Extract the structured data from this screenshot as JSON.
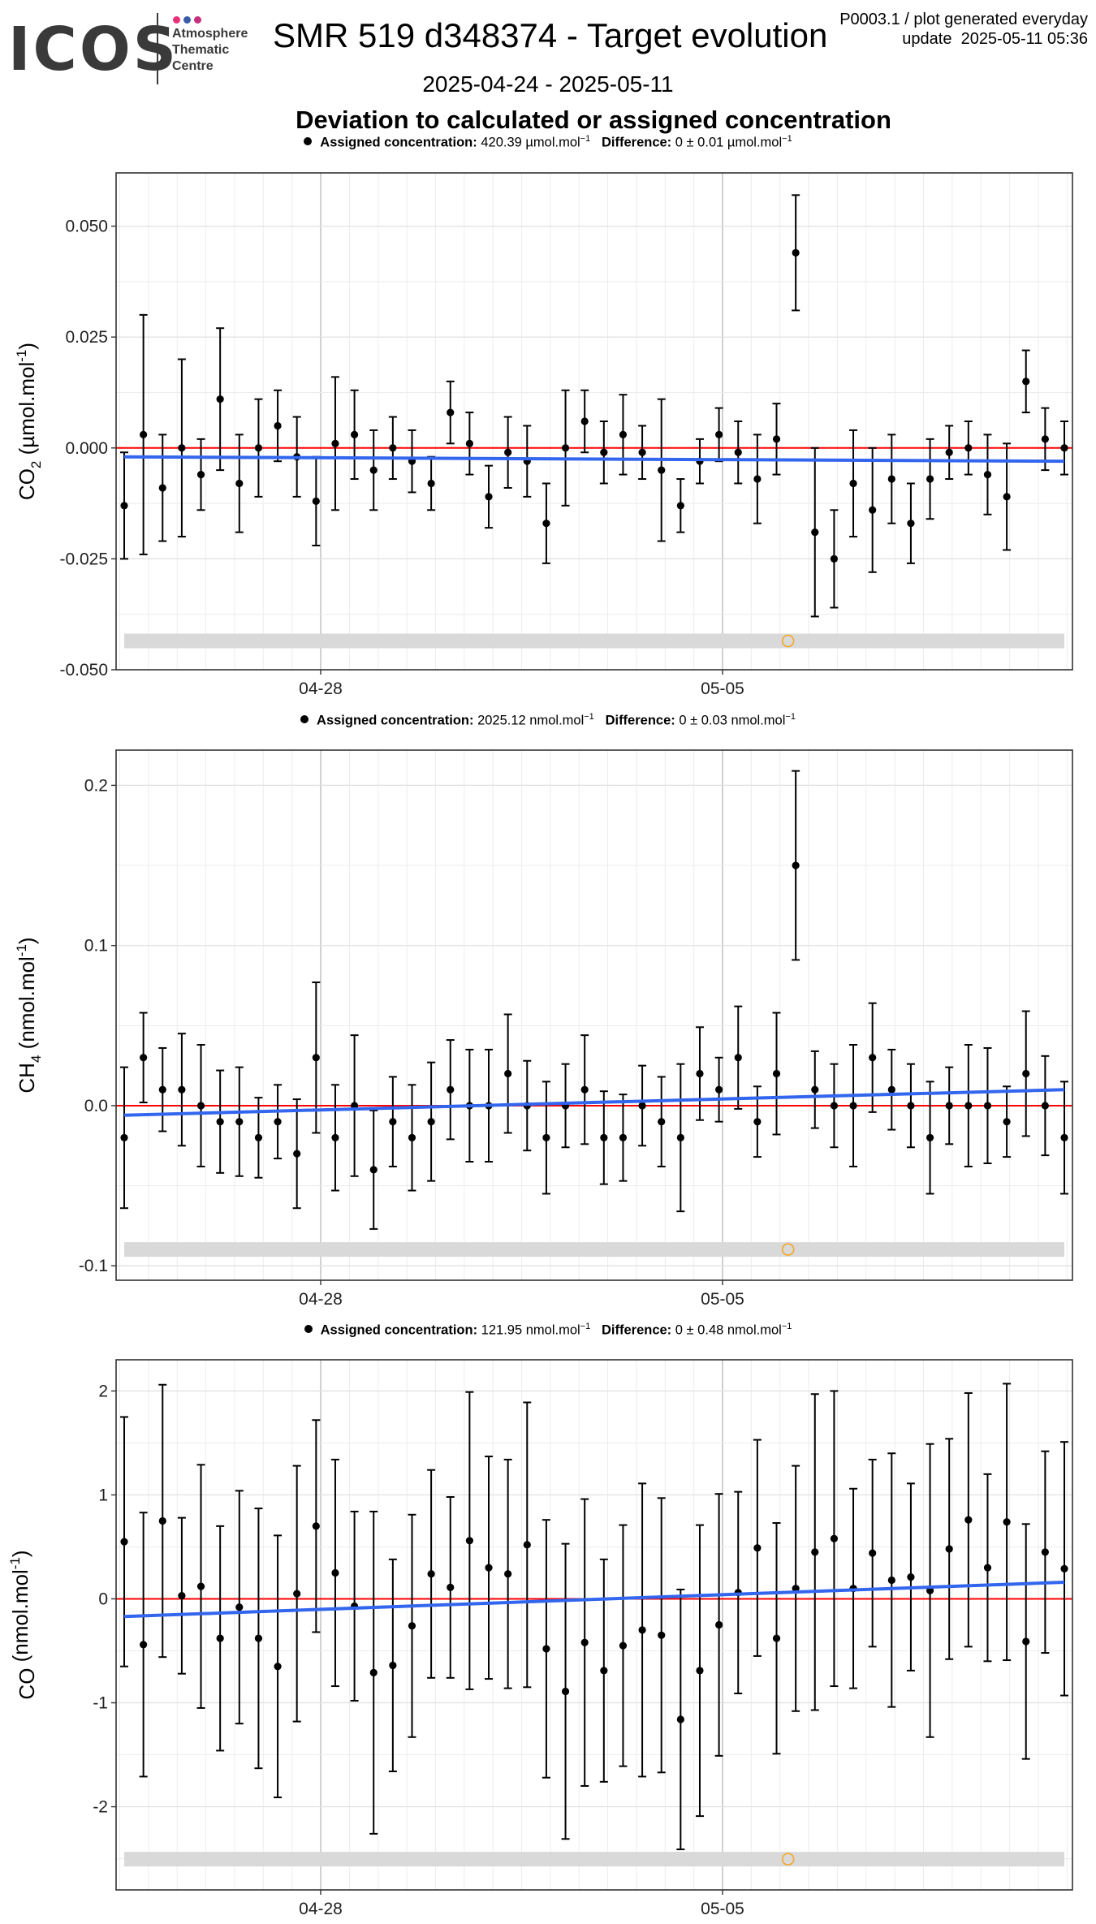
{
  "header": {
    "logo_word": "ICOS",
    "logo_line1": "Atmosphere",
    "logo_line2": "Thematic",
    "logo_line3": "Centre",
    "logo_dot_colors": [
      "#e8317a",
      "#3b5aa8",
      "#c62f7c"
    ],
    "title": "SMR 519 d348374 - Target evolution",
    "date_range": "2025-04-24 - 2025-05-11",
    "corner_line1": "P0003.1 / plot generated everyday",
    "corner_line2": "update  2025-05-11 05:36",
    "heading": "Deviation to calculated or assigned concentration"
  },
  "colors": {
    "points": "#000000",
    "zero_line": "#ff0000",
    "trend_line": "#3366ee",
    "highlight_circle": "#f5a623",
    "band": "#d9d9d9",
    "panel_border": "#333333",
    "grid_major": "#cccccc",
    "grid_minor": "#ececec"
  },
  "x_ticks": [
    "04-28",
    "05-05"
  ],
  "chart_data": [
    {
      "type": "scatter",
      "panel": "CO2",
      "ylabel_main": "CO",
      "ylabel_sub": "2",
      "ylabel_unit": " (µmol.mol",
      "ylabel_exp": "-1",
      "ylabel_end": ")",
      "legend_label": "Assigned concentration:",
      "legend_value": "420.39 µmol.mol",
      "legend_diff_label": "Difference:",
      "legend_diff_value": "0 ± 0.01 µmol.mol",
      "ylim": [
        -0.05,
        0.062
      ],
      "yticks": [
        0.05,
        0.025,
        0.0,
        -0.025,
        -0.05
      ],
      "ytick_labels": [
        "0.050",
        "0.025",
        "0.000",
        "-0.025",
        "-0.050"
      ],
      "y": [
        -0.013,
        0.003,
        -0.009,
        0.0,
        -0.006,
        0.011,
        -0.008,
        0.0,
        0.005,
        -0.002,
        -0.012,
        0.001,
        0.003,
        -0.005,
        0.0,
        -0.003,
        -0.008,
        0.008,
        0.001,
        -0.011,
        -0.001,
        -0.003,
        -0.017,
        0.0,
        0.006,
        -0.001,
        0.003,
        -0.001,
        -0.005,
        -0.013,
        -0.003,
        0.003,
        -0.001,
        -0.007,
        0.002,
        0.044,
        -0.019,
        -0.025,
        -0.008,
        -0.014,
        -0.007,
        -0.017,
        -0.007,
        -0.001,
        0.0,
        -0.006,
        -0.011,
        0.015,
        0.002,
        0.0
      ],
      "err": [
        0.012,
        0.027,
        0.012,
        0.02,
        0.008,
        0.016,
        0.011,
        0.011,
        0.008,
        0.009,
        0.01,
        0.015,
        0.01,
        0.009,
        0.007,
        0.007,
        0.006,
        0.007,
        0.007,
        0.007,
        0.008,
        0.008,
        0.009,
        0.013,
        0.007,
        0.007,
        0.009,
        0.006,
        0.016,
        0.006,
        0.005,
        0.006,
        0.007,
        0.01,
        0.008,
        0.013,
        0.019,
        0.011,
        0.012,
        0.014,
        0.01,
        0.009,
        0.009,
        0.006,
        0.006,
        0.009,
        0.012,
        0.007,
        0.007,
        0.006
      ],
      "trend": [
        -0.002,
        -0.003
      ],
      "highlight_index": 34
    },
    {
      "type": "scatter",
      "panel": "CH4",
      "ylabel_main": "CH",
      "ylabel_sub": "4",
      "ylabel_unit": " (nmol.mol",
      "ylabel_exp": "-1",
      "ylabel_end": ")",
      "legend_label": "Assigned concentration:",
      "legend_value": "2025.12 nmol.mol",
      "legend_diff_label": "Difference:",
      "legend_diff_value": "0 ± 0.03 nmol.mol",
      "ylim": [
        -0.109,
        0.222
      ],
      "yticks": [
        0.2,
        0.1,
        0.0,
        -0.1
      ],
      "ytick_labels": [
        "0.2",
        "0.1",
        "0.0",
        "-0.1"
      ],
      "y": [
        -0.02,
        0.03,
        0.01,
        0.01,
        0.0,
        -0.01,
        -0.01,
        -0.02,
        -0.01,
        -0.03,
        0.03,
        -0.02,
        0.0,
        -0.04,
        -0.01,
        -0.02,
        -0.01,
        0.01,
        0.0,
        0.0,
        0.02,
        0.0,
        -0.02,
        0.0,
        0.01,
        -0.02,
        -0.02,
        0.0,
        -0.01,
        -0.02,
        0.02,
        0.01,
        0.03,
        -0.01,
        0.02,
        0.15,
        0.01,
        0.0,
        0.0,
        0.03,
        0.01,
        0.0,
        -0.02,
        0.0,
        0.0,
        0.0,
        -0.01,
        0.02,
        0.0,
        -0.02
      ],
      "err": [
        0.044,
        0.028,
        0.026,
        0.035,
        0.038,
        0.032,
        0.034,
        0.025,
        0.023,
        0.034,
        0.047,
        0.033,
        0.044,
        0.037,
        0.028,
        0.033,
        0.037,
        0.031,
        0.035,
        0.035,
        0.037,
        0.028,
        0.035,
        0.026,
        0.034,
        0.029,
        0.027,
        0.025,
        0.028,
        0.046,
        0.029,
        0.02,
        0.032,
        0.022,
        0.038,
        0.059,
        0.024,
        0.026,
        0.038,
        0.034,
        0.025,
        0.026,
        0.035,
        0.024,
        0.038,
        0.036,
        0.022,
        0.039,
        0.031,
        0.035
      ],
      "trend": [
        -0.006,
        0.01
      ],
      "highlight_index": 34
    },
    {
      "type": "scatter",
      "panel": "CO",
      "ylabel_main": "CO",
      "ylabel_sub": "",
      "ylabel_unit": " (nmol.mol",
      "ylabel_exp": "-1",
      "ylabel_end": ")",
      "legend_label": "Assigned concentration:",
      "legend_value": "121.95 nmol.mol",
      "legend_diff_label": "Difference:",
      "legend_diff_value": "0 ± 0.48 nmol.mol",
      "ylim": [
        -2.8,
        2.3
      ],
      "yticks": [
        2,
        1,
        0,
        -1,
        -2
      ],
      "ytick_labels": [
        "2",
        "1",
        "0",
        "-1",
        "-2"
      ],
      "y": [
        0.55,
        -0.44,
        0.75,
        0.03,
        0.12,
        -0.38,
        -0.08,
        -0.38,
        -0.65,
        0.05,
        0.7,
        0.25,
        -0.07,
        -0.71,
        -0.64,
        -0.26,
        0.24,
        0.11,
        0.56,
        0.3,
        0.24,
        0.52,
        -0.48,
        -0.89,
        -0.42,
        -0.69,
        -0.45,
        -0.3,
        -0.35,
        -1.16,
        -0.69,
        -0.25,
        0.06,
        0.49,
        -0.38,
        0.1,
        0.45,
        0.58,
        0.1,
        0.44,
        0.18,
        0.21,
        0.08,
        0.48,
        0.76,
        0.3,
        0.74,
        -0.41,
        0.45,
        0.29
      ],
      "err": [
        1.2,
        1.27,
        1.31,
        0.75,
        1.17,
        1.08,
        1.12,
        1.25,
        1.26,
        1.23,
        1.02,
        1.09,
        0.91,
        1.55,
        1.02,
        1.07,
        1.0,
        0.87,
        1.43,
        1.07,
        1.1,
        1.37,
        1.24,
        1.42,
        1.38,
        1.07,
        1.16,
        1.41,
        1.32,
        1.25,
        1.4,
        1.26,
        0.97,
        1.04,
        1.11,
        1.18,
        1.52,
        1.42,
        0.96,
        0.9,
        1.22,
        0.9,
        1.41,
        1.06,
        1.22,
        0.9,
        1.33,
        1.13,
        0.97,
        1.22
      ],
      "trend": [
        -0.17,
        0.16
      ],
      "highlight_index": 34
    }
  ]
}
